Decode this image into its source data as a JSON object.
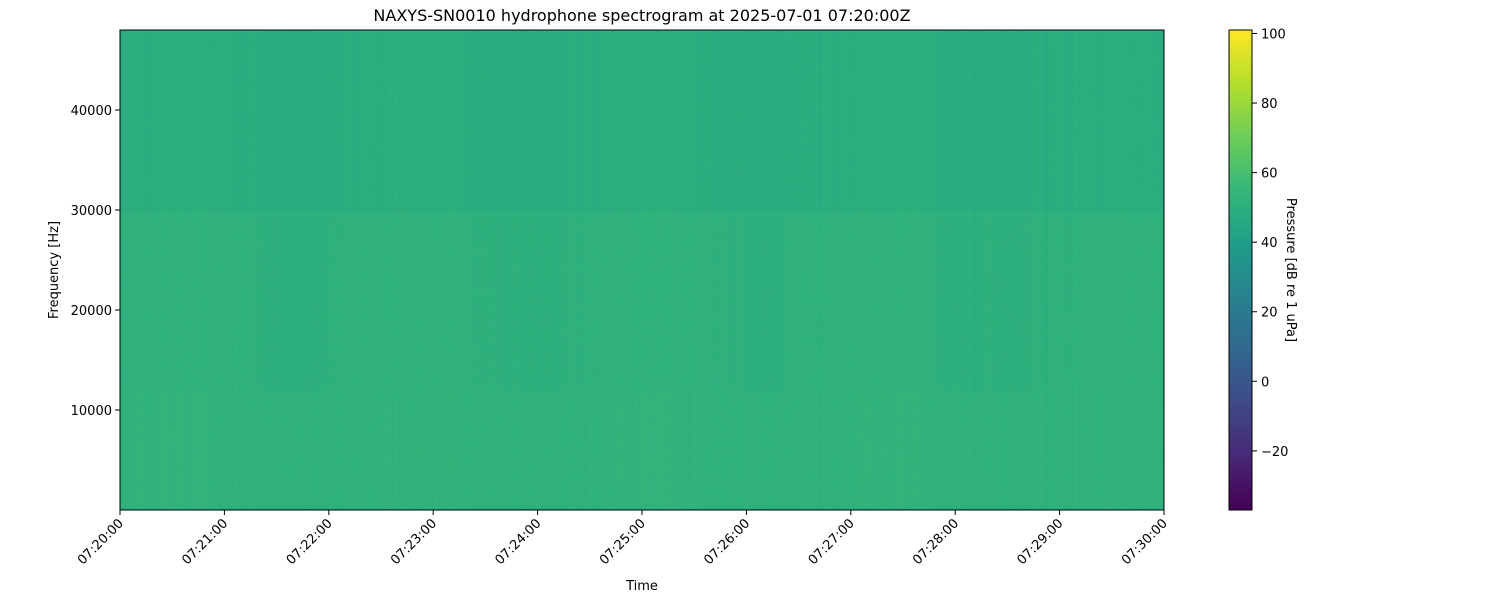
{
  "chart_data": {
    "type": "heatmap",
    "title": "NAXYS-SN0010 hydrophone spectrogram at 2025-07-01 07:20:00Z",
    "xlabel": "Time",
    "ylabel": "Frequency [Hz]",
    "x_ticks": [
      "07:20:00",
      "07:21:00",
      "07:22:00",
      "07:23:00",
      "07:24:00",
      "07:25:00",
      "07:26:00",
      "07:27:00",
      "07:28:00",
      "07:29:00",
      "07:30:00"
    ],
    "xlim": [
      "07:20:00",
      "07:30:00"
    ],
    "y_ticks": [
      10000,
      20000,
      30000,
      40000
    ],
    "ylim": [
      0,
      48000
    ],
    "colorbar": {
      "label": "Pressure [dB re 1 uPa]",
      "colormap": "viridis",
      "ticks": [
        -20,
        0,
        20,
        40,
        60,
        80,
        100
      ],
      "range": [
        -37,
        101
      ]
    },
    "approximate_levels_db": [
      {
        "freq_range_hz": [
          0,
          500
        ],
        "level_db": 50
      },
      {
        "freq_range_hz": [
          500,
          12000
        ],
        "level_db": 52
      },
      {
        "freq_range_hz": [
          12000,
          30000
        ],
        "level_db": 51
      },
      {
        "freq_range_hz": [
          30000,
          48000
        ],
        "level_db": 49
      }
    ],
    "grid": false
  }
}
